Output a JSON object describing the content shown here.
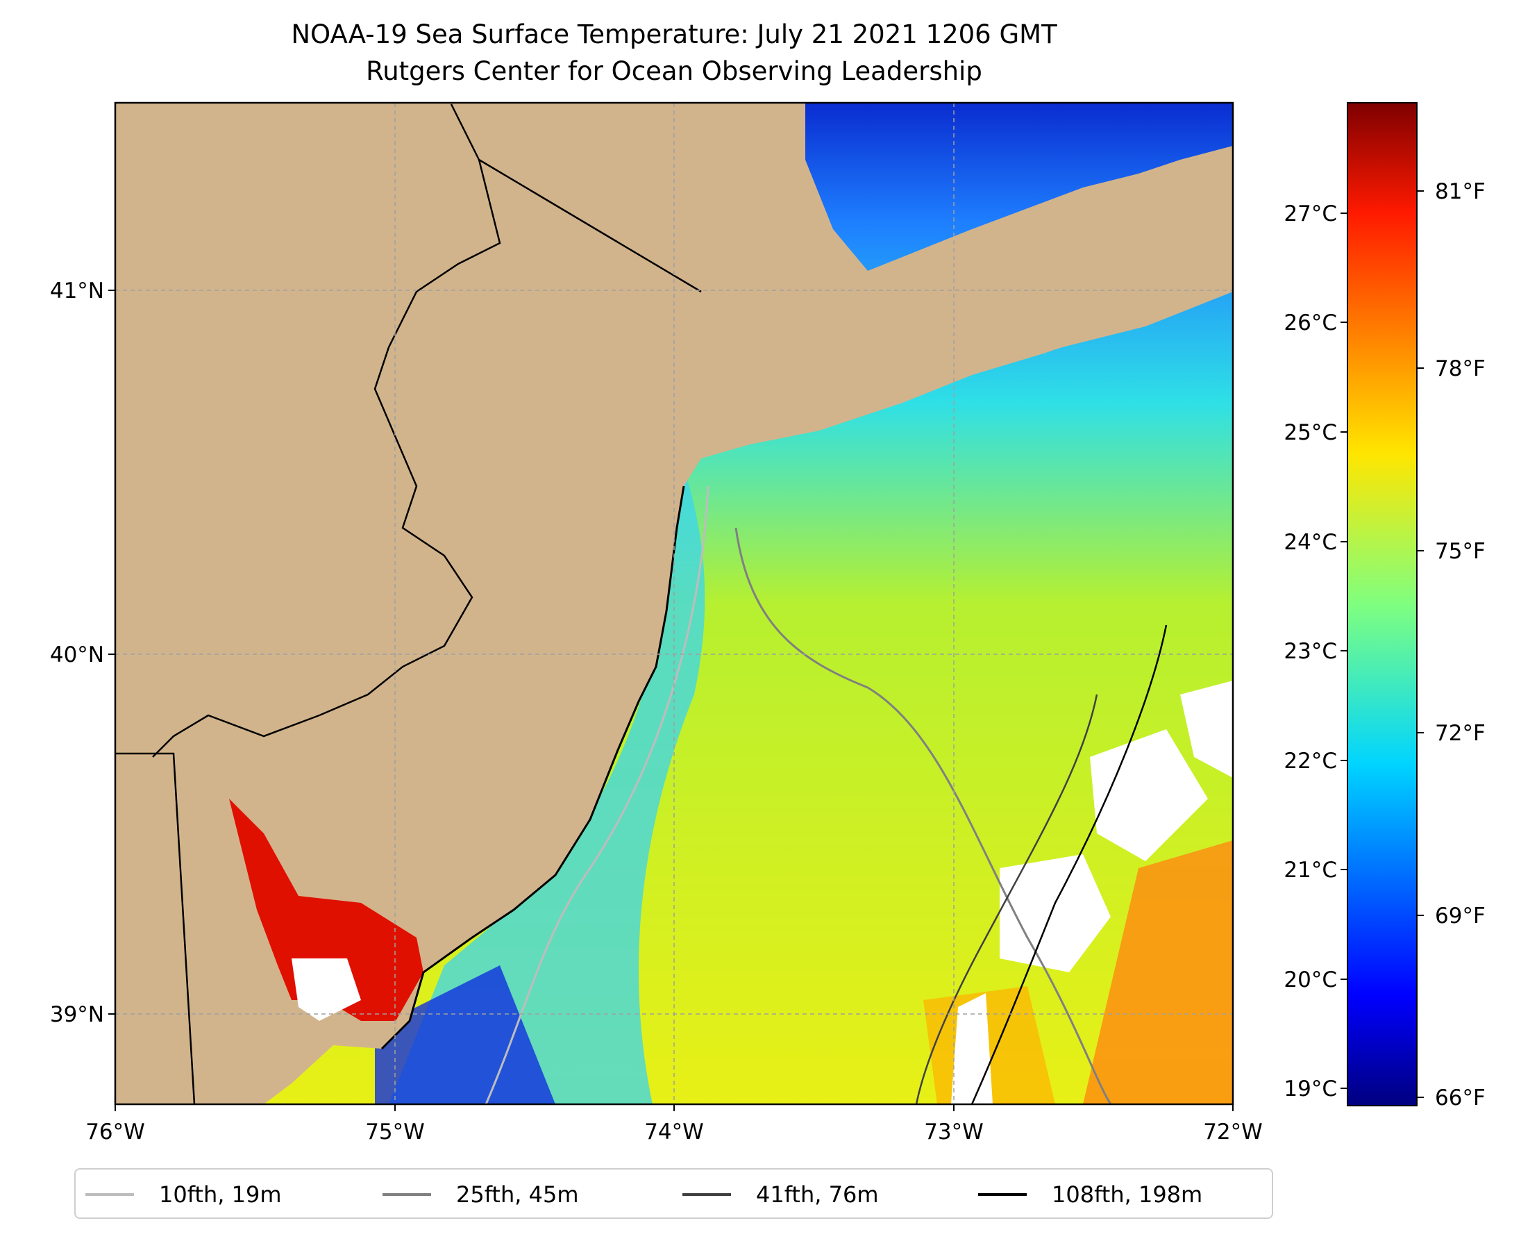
{
  "title": "NOAA-19 Sea Surface Temperature: July 21 2021 1206 GMT",
  "subtitle": "Rutgers Center for Ocean Observing Leadership",
  "map": {
    "lon_ticks": [
      "76°W",
      "75°W",
      "74°W",
      "73°W",
      "72°W"
    ],
    "lat_ticks": [
      "41°N",
      "40°N",
      "39°N"
    ],
    "lon_range": [
      -76,
      -72
    ],
    "lat_range": [
      38.74,
      41.52
    ],
    "gridlines": true,
    "land_color": "#d2b48c",
    "missing_data_color": "#ffffff"
  },
  "colorbar": {
    "celsius_ticks": [
      "19°C",
      "20°C",
      "21°C",
      "22°C",
      "23°C",
      "24°C",
      "25°C",
      "26°C",
      "27°C"
    ],
    "fahrenheit_ticks": [
      "66°F",
      "69°F",
      "72°F",
      "75°F",
      "78°F",
      "81°F"
    ],
    "colormap": "jet",
    "range_c": [
      18.9,
      28.0
    ]
  },
  "legend": [
    {
      "label": "10fth, 19m",
      "color": "#bdbdbd"
    },
    {
      "label": "25fth, 45m",
      "color": "#808080"
    },
    {
      "label": "41fth, 76m",
      "color": "#404040"
    },
    {
      "label": "108fth, 198m",
      "color": "#000000"
    }
  ]
}
